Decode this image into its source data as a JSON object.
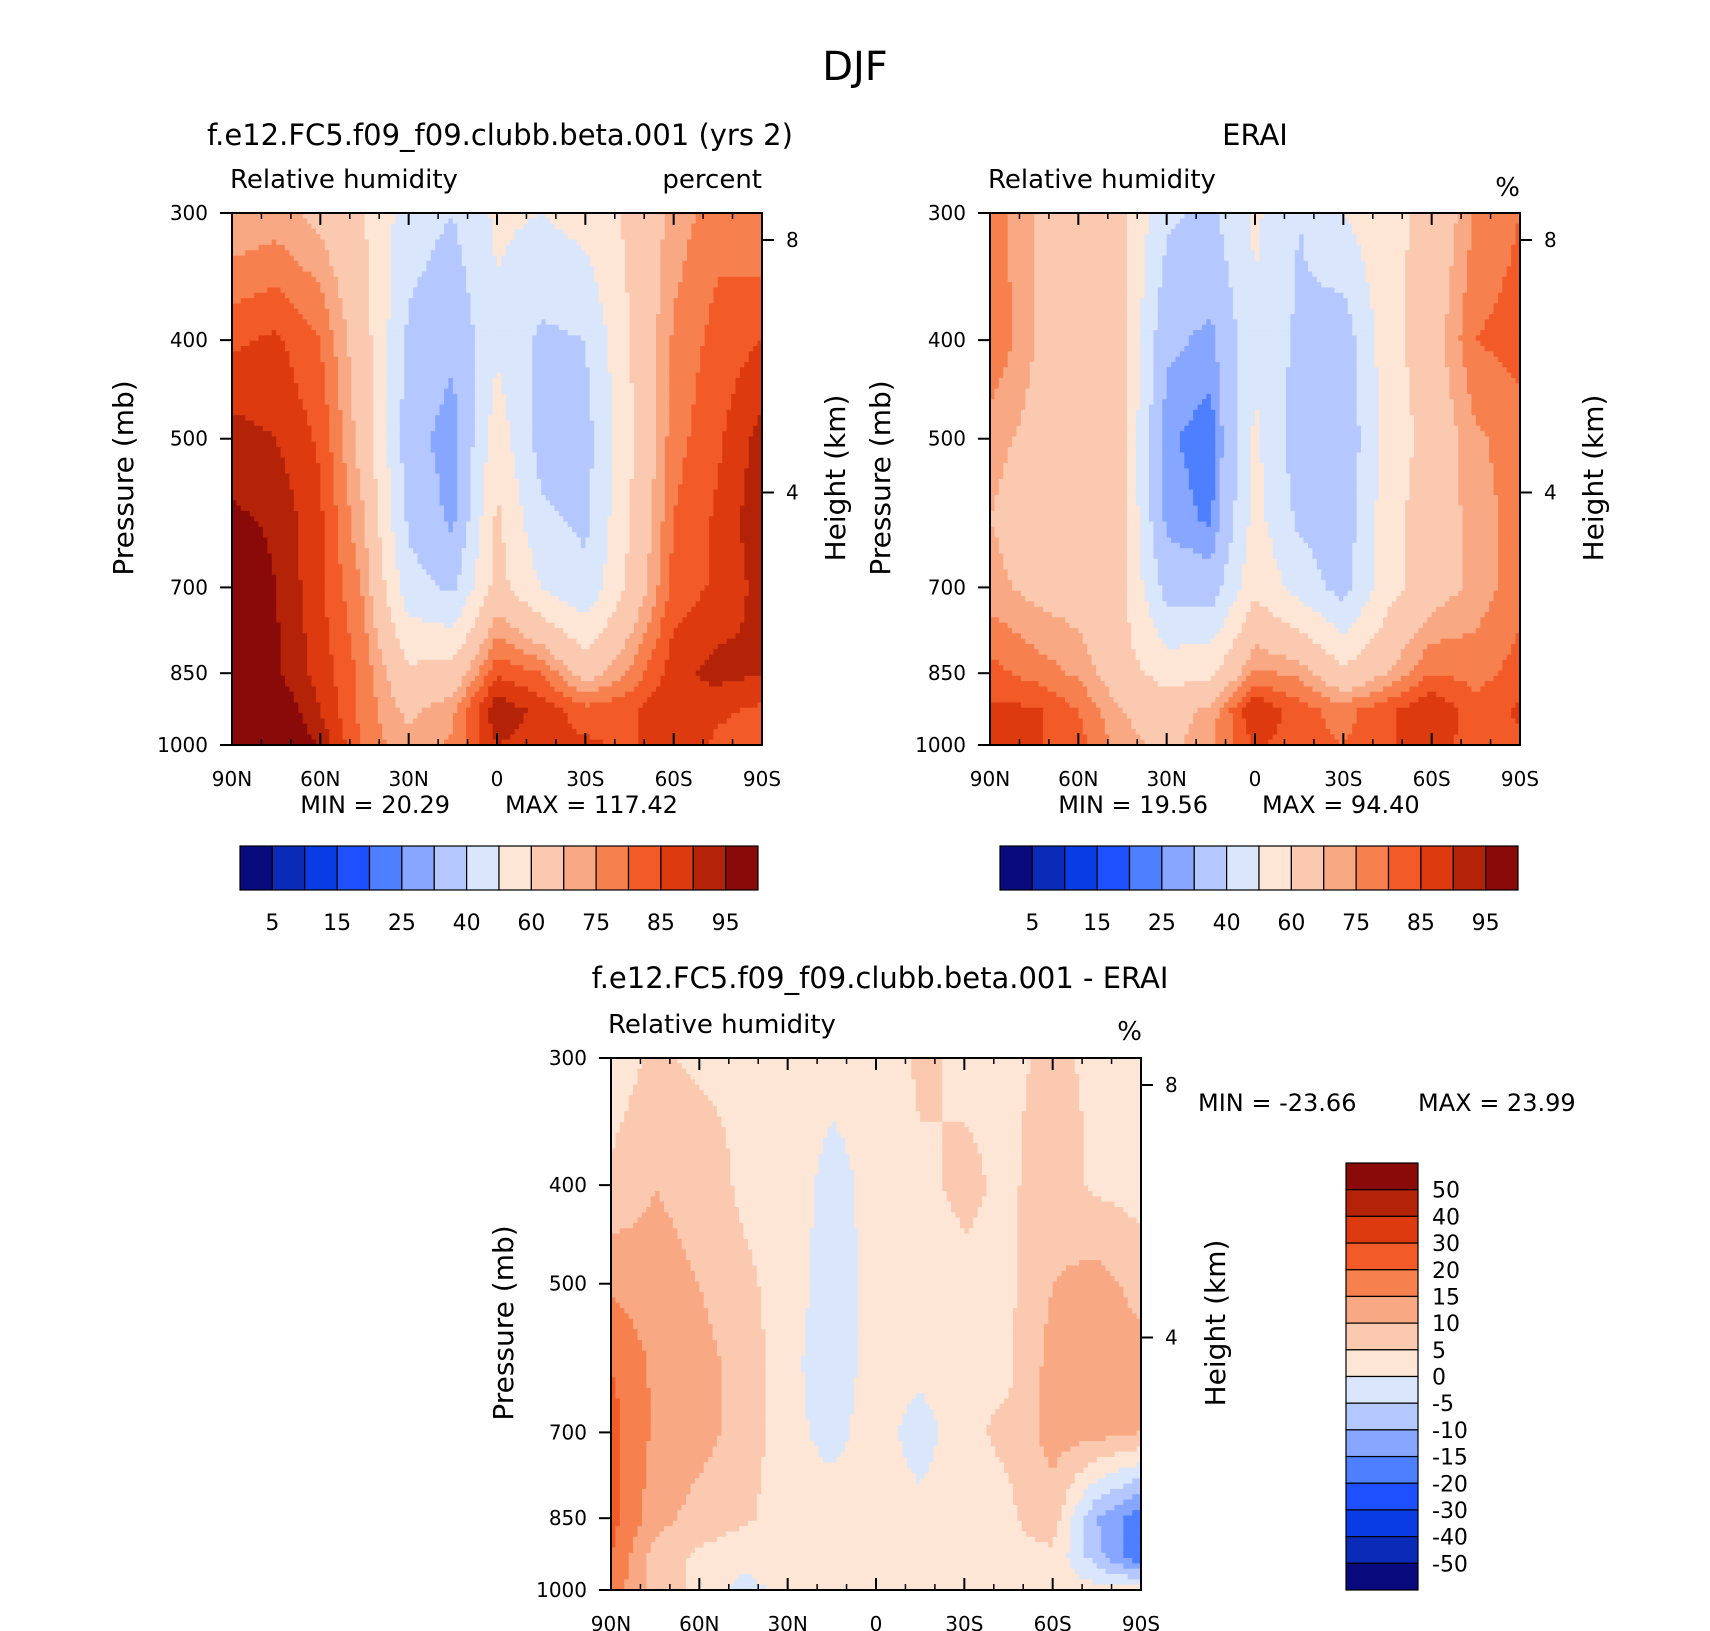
{
  "figure": {
    "title": "DJF"
  },
  "colors": {
    "abs_palette": [
      "#0a0a7f",
      "#0a2bb8",
      "#0a3ce6",
      "#1f50ff",
      "#4d7fff",
      "#86a6ff",
      "#b4c8ff",
      "#d9e6fb",
      "#fde6d6",
      "#fbc8b0",
      "#f9a884",
      "#f7804f",
      "#f25a28",
      "#dd3a10",
      "#b42208",
      "#8a0a0a"
    ],
    "diff_palette": [
      "#0a0a7f",
      "#0a2bb8",
      "#0a3ce6",
      "#1f50ff",
      "#4d7fff",
      "#86a6ff",
      "#b4c8ff",
      "#d9e6fb",
      "#fde6d6",
      "#fbc8b0",
      "#f9a884",
      "#f7804f",
      "#f25a28",
      "#dd3a10",
      "#b42208",
      "#8a0a0a"
    ]
  },
  "chart_data": [
    {
      "type": "heatmap",
      "id": "model",
      "title": "f.e12.FC5.f09_f09.clubb.beta.001 (yrs 2)",
      "left_label": "Relative humidity",
      "right_label": "percent",
      "xlabel": "",
      "ylabel": "Pressure (mb)",
      "y2label": "Height (km)",
      "x_ticks": [
        "90N",
        "60N",
        "30N",
        "0",
        "30S",
        "60S",
        "90S"
      ],
      "y_ticks": [
        "300",
        "400",
        "500",
        "700",
        "850",
        "1000"
      ],
      "y2_ticks": [
        "8",
        "4"
      ],
      "min_text": "MIN =  20.29",
      "max_text": "MAX = 117.42",
      "latitudes": [
        90,
        75,
        60,
        45,
        30,
        15,
        0,
        -15,
        -30,
        -45,
        -60,
        -75,
        -90
      ],
      "pressures": [
        300,
        400,
        500,
        600,
        700,
        850,
        925,
        1000
      ],
      "values": [
        [
          70,
          72,
          68,
          60,
          45,
          40,
          52,
          50,
          54,
          62,
          72,
          78,
          75
        ],
        [
          84,
          86,
          80,
          64,
          38,
          32,
          48,
          38,
          40,
          60,
          76,
          82,
          85
        ],
        [
          92,
          90,
          84,
          66,
          34,
          26,
          56,
          36,
          36,
          58,
          78,
          84,
          92
        ],
        [
          96,
          94,
          86,
          70,
          38,
          28,
          62,
          42,
          38,
          60,
          80,
          86,
          94
        ],
        [
          100,
          95,
          86,
          74,
          44,
          38,
          64,
          50,
          42,
          62,
          82,
          86,
          92
        ],
        [
          108,
          96,
          88,
          78,
          62,
          64,
          84,
          80,
          66,
          76,
          88,
          92,
          90
        ],
        [
          112,
          100,
          90,
          78,
          68,
          74,
          94,
          88,
          82,
          84,
          90,
          86,
          84
        ],
        [
          117,
          104,
          94,
          78,
          72,
          76,
          90,
          88,
          86,
          84,
          88,
          84,
          82
        ]
      ]
    },
    {
      "type": "heatmap",
      "id": "obs",
      "title": "ERAI",
      "left_label": "Relative humidity",
      "right_label": "%",
      "xlabel": "",
      "ylabel": "Pressure (mb)",
      "y2label": "Height (km)",
      "x_ticks": [
        "90N",
        "60N",
        "30N",
        "0",
        "30S",
        "60S",
        "90S"
      ],
      "y_ticks": [
        "300",
        "400",
        "500",
        "700",
        "850",
        "1000"
      ],
      "y2_ticks": [
        "8",
        "4"
      ],
      "min_text": "MIN =  19.56",
      "max_text": "MAX =  94.40",
      "latitudes": [
        90,
        75,
        60,
        45,
        30,
        15,
        0,
        -15,
        -30,
        -45,
        -60,
        -75,
        -90
      ],
      "pressures": [
        300,
        400,
        500,
        600,
        700,
        850,
        925,
        1000
      ],
      "values": [
        [
          78,
          70,
          68,
          62,
          42,
          38,
          52,
          40,
          50,
          58,
          62,
          76,
          80
        ],
        [
          80,
          70,
          66,
          62,
          32,
          28,
          48,
          38,
          34,
          56,
          66,
          80,
          82
        ],
        [
          72,
          68,
          66,
          62,
          26,
          22,
          52,
          34,
          32,
          54,
          64,
          74,
          78
        ],
        [
          70,
          66,
          64,
          62,
          28,
          24,
          54,
          38,
          34,
          56,
          66,
          72,
          78
        ],
        [
          72,
          68,
          66,
          62,
          36,
          34,
          58,
          46,
          36,
          56,
          66,
          72,
          78
        ],
        [
          82,
          78,
          74,
          64,
          56,
          58,
          76,
          74,
          62,
          70,
          80,
          78,
          82
        ],
        [
          86,
          86,
          80,
          70,
          66,
          72,
          90,
          82,
          78,
          84,
          90,
          82,
          86
        ],
        [
          90,
          86,
          82,
          72,
          68,
          74,
          86,
          82,
          80,
          84,
          88,
          82,
          84
        ]
      ]
    },
    {
      "type": "heatmap",
      "id": "diff",
      "title": "f.e12.FC5.f09_f09.clubb.beta.001 - ERAI",
      "left_label": "Relative humidity",
      "right_label": "%",
      "xlabel": "",
      "ylabel": "Pressure (mb)",
      "y2label": "Height (km)",
      "x_ticks": [
        "90N",
        "60N",
        "30N",
        "0",
        "30S",
        "60S",
        "90S"
      ],
      "y_ticks": [
        "300",
        "400",
        "500",
        "700",
        "850",
        "1000"
      ],
      "y2_ticks": [
        "8",
        "4"
      ],
      "min_text": "MIN = -23.66",
      "max_text": "MAX =  23.99",
      "latitudes": [
        90,
        75,
        60,
        45,
        30,
        15,
        0,
        -15,
        -30,
        -45,
        -60,
        -75,
        -90
      ],
      "pressures": [
        300,
        400,
        500,
        600,
        700,
        850,
        925,
        1000
      ],
      "values": [
        [
          2,
          6,
          4,
          4,
          3,
          2,
          1,
          6,
          4,
          4,
          6,
          4,
          2
        ],
        [
          6,
          10,
          8,
          4,
          3,
          -2,
          2,
          4,
          6,
          4,
          8,
          4,
          3
        ],
        [
          14,
          12,
          10,
          6,
          3,
          -3,
          2,
          2,
          4,
          4,
          10,
          12,
          8
        ],
        [
          20,
          14,
          12,
          8,
          2,
          -4,
          3,
          2,
          4,
          4,
          12,
          14,
          12
        ],
        [
          22,
          14,
          12,
          8,
          2,
          -2,
          3,
          -3,
          4,
          6,
          12,
          12,
          10
        ],
        [
          22,
          12,
          8,
          6,
          2,
          3,
          3,
          2,
          3,
          4,
          8,
          -10,
          -18
        ],
        [
          20,
          8,
          4,
          2,
          2,
          2,
          2,
          2,
          4,
          4,
          4,
          -8,
          -20
        ],
        [
          18,
          8,
          4,
          -2,
          2,
          2,
          3,
          4,
          3,
          2,
          2,
          2,
          2
        ]
      ]
    }
  ],
  "legends": {
    "abs": {
      "labels": [
        "5",
        "15",
        "25",
        "40",
        "60",
        "75",
        "85",
        "95"
      ]
    },
    "diff": {
      "labels": [
        "50",
        "40",
        "30",
        "20",
        "15",
        "10",
        "5",
        "0",
        "-5",
        "-10",
        "-15",
        "-20",
        "-30",
        "-40",
        "-50"
      ]
    }
  }
}
